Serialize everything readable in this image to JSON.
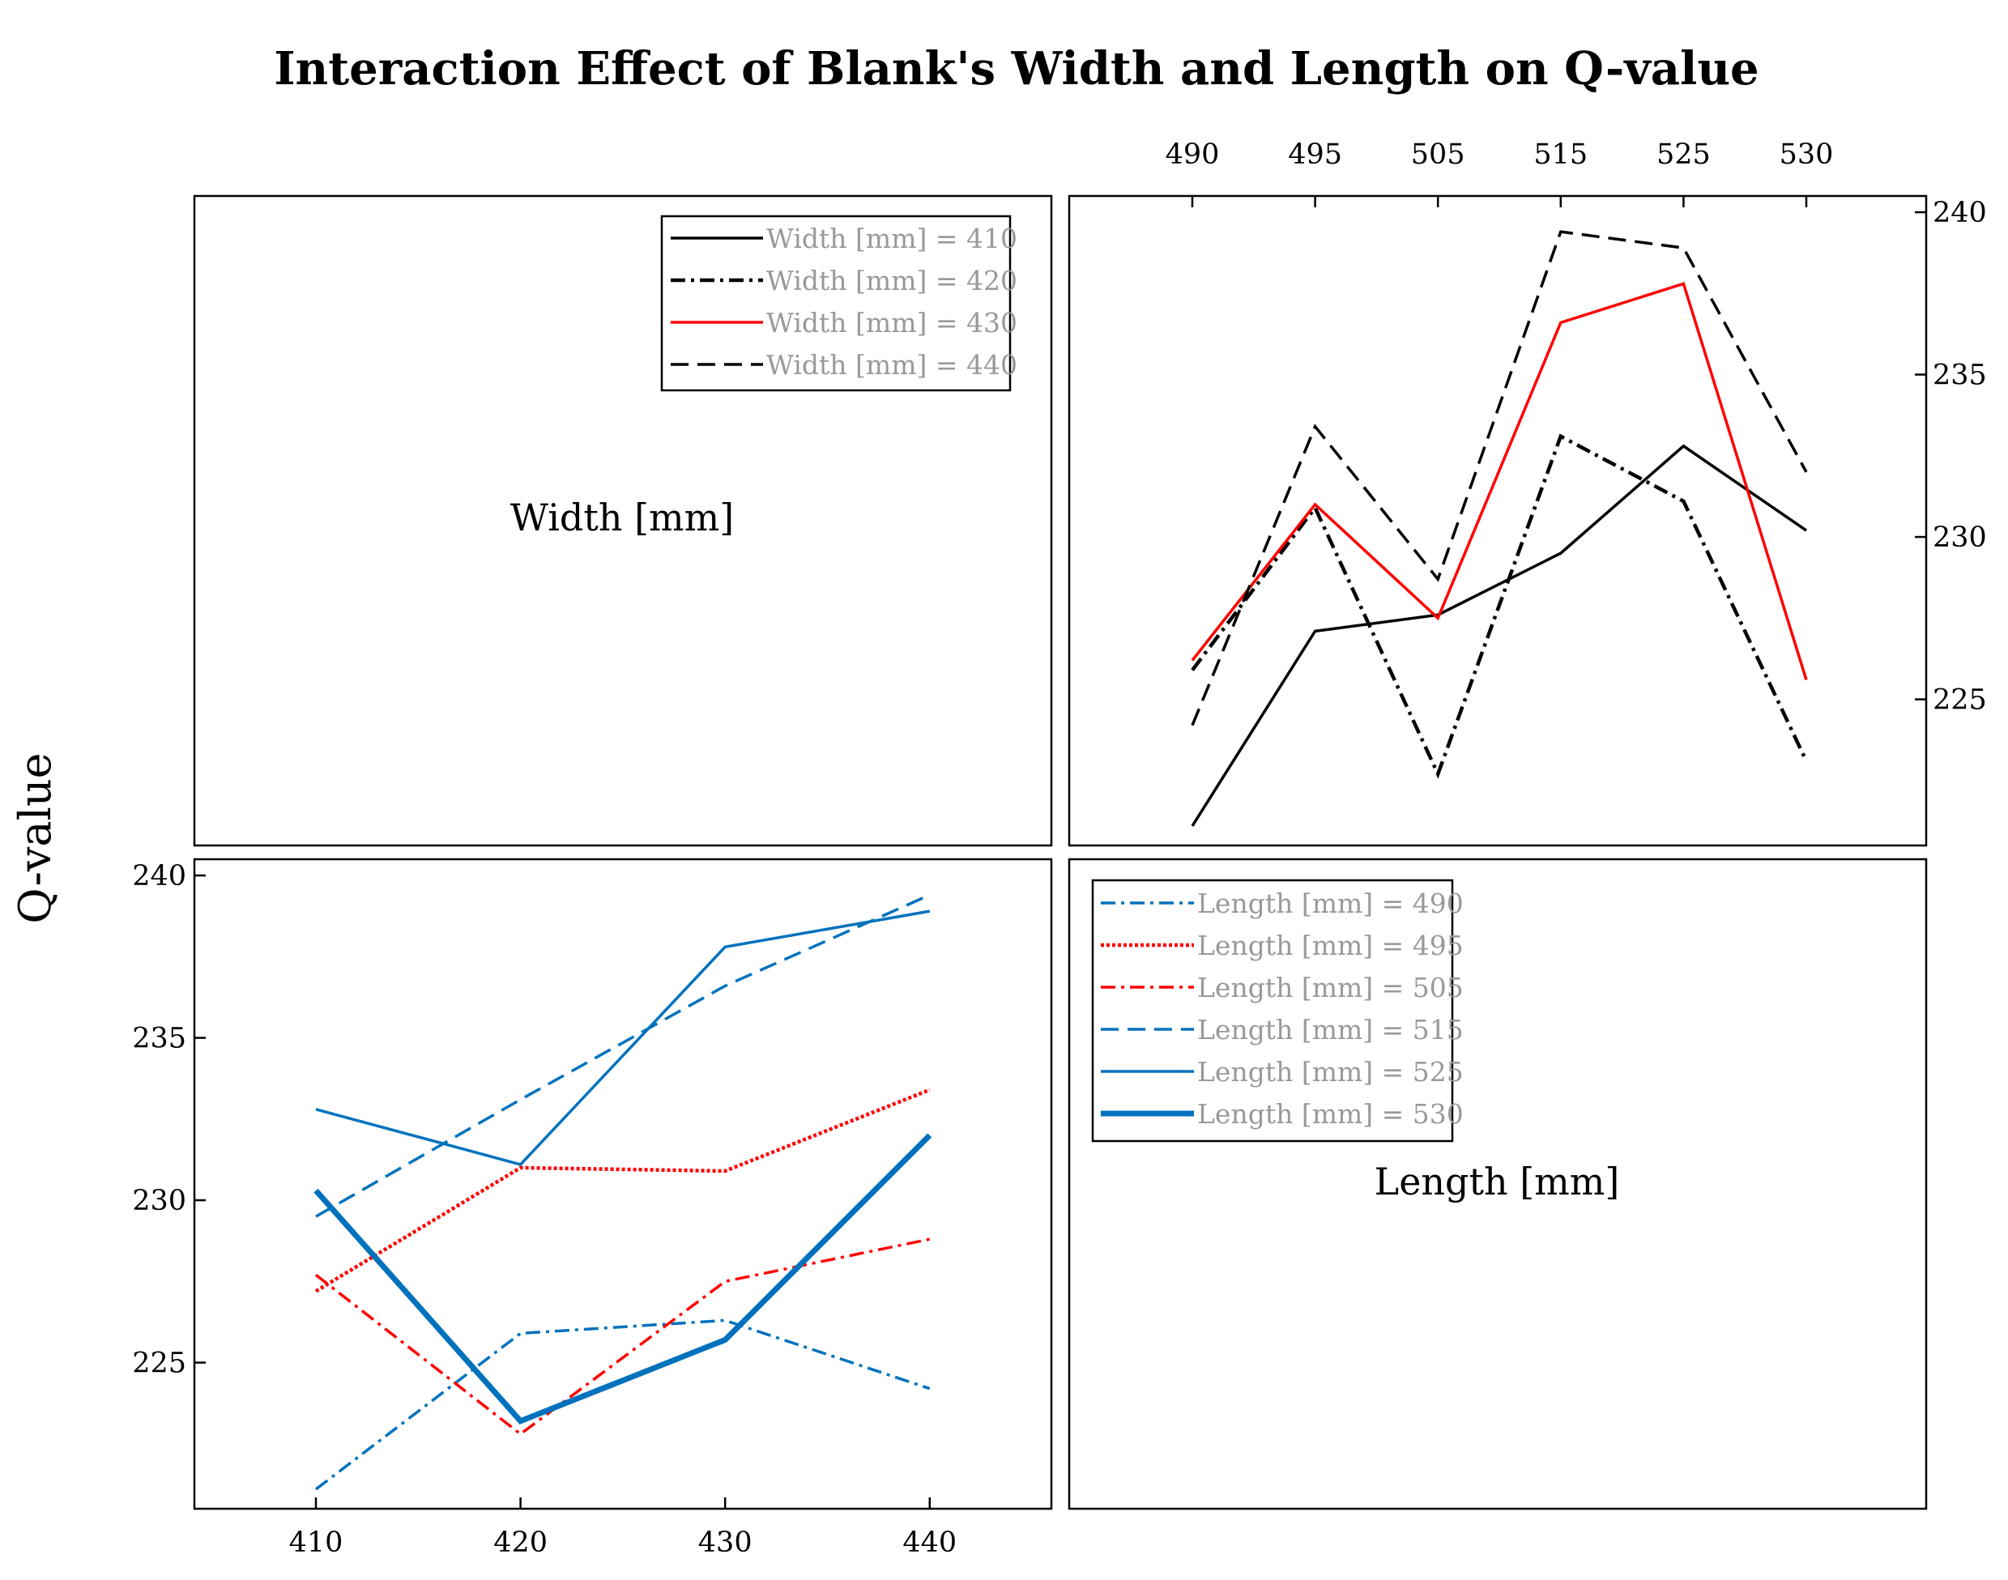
{
  "chart_data": {
    "type": "line",
    "title": "Interaction Effect of Blank's Width and Length on Q-value",
    "ylabel": "Q-value",
    "ylim": [
      220.5,
      240.5
    ],
    "yticks": [
      225,
      230,
      235,
      240
    ],
    "top_right": {
      "xlabel": "Length [mm]",
      "categories": [
        490,
        495,
        505,
        515,
        525,
        530
      ],
      "series": [
        {
          "name": "Width [mm] = 410",
          "color": "#000000",
          "dash": "solid",
          "width": 3.5,
          "values": [
            221.1,
            227.1,
            227.6,
            229.5,
            232.8,
            230.2
          ]
        },
        {
          "name": "Width [mm] = 420",
          "color": "#000000",
          "dash": "dashdot",
          "width": 4.5,
          "values": [
            225.9,
            230.9,
            222.7,
            233.1,
            231.1,
            223.1
          ]
        },
        {
          "name": "Width [mm] = 430",
          "color": "#ff0000",
          "dash": "solid",
          "width": 3.5,
          "values": [
            226.2,
            231.0,
            227.5,
            236.6,
            237.8,
            225.6
          ]
        },
        {
          "name": "Width [mm] = 440",
          "color": "#000000",
          "dash": "dashed",
          "width": 3.5,
          "values": [
            224.2,
            233.4,
            228.7,
            239.4,
            238.9,
            232.0
          ]
        }
      ]
    },
    "bottom_left": {
      "xlabel": "Width [mm]",
      "categories": [
        410,
        420,
        430,
        440
      ],
      "series": [
        {
          "name": "Length [mm] = 490",
          "color": "#0072bd",
          "dash": "dashdot",
          "width": 3.5,
          "values": [
            221.1,
            225.9,
            226.3,
            224.2
          ]
        },
        {
          "name": "Length [mm] = 495",
          "color": "#ff0000",
          "dash": "dotted",
          "width": 4.5,
          "values": [
            227.2,
            231.0,
            230.9,
            233.4
          ]
        },
        {
          "name": "Length [mm] = 505",
          "color": "#ff0000",
          "dash": "dashdot",
          "width": 3.5,
          "values": [
            227.7,
            222.8,
            227.5,
            228.8
          ]
        },
        {
          "name": "Length [mm] = 515",
          "color": "#0072bd",
          "dash": "dashed",
          "width": 3.5,
          "values": [
            229.5,
            233.1,
            236.6,
            239.4
          ]
        },
        {
          "name": "Length [mm] = 525",
          "color": "#0072bd",
          "dash": "solid",
          "width": 3.5,
          "values": [
            232.8,
            231.1,
            237.8,
            238.9
          ]
        },
        {
          "name": "Length [mm] = 530",
          "color": "#0072bd",
          "dash": "solid",
          "width": 7,
          "values": [
            230.3,
            223.2,
            225.7,
            232.0
          ]
        }
      ]
    }
  }
}
